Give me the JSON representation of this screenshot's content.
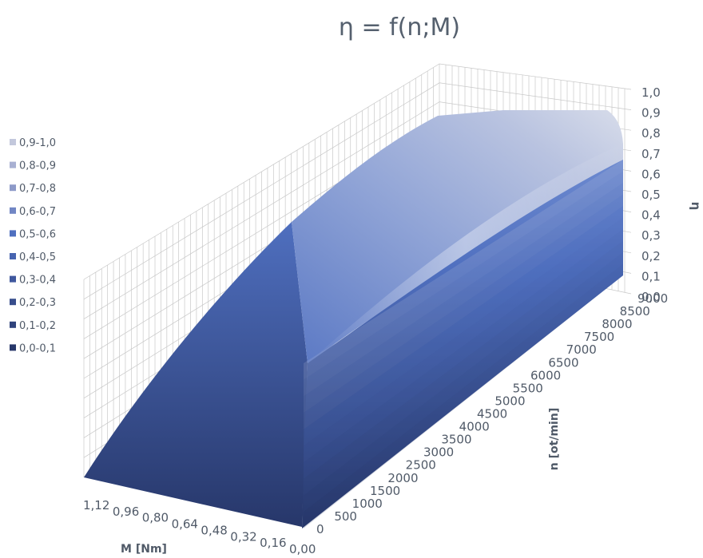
{
  "chart_data": {
    "type": "surface",
    "title": "η = f(n;M)",
    "z_label": "η",
    "y_label": "n [ot/min]",
    "x_label": "M [Nm]",
    "z_ticks": [
      "1,0",
      "0,9",
      "0,8",
      "0,7",
      "0,6",
      "0,5",
      "0,4",
      "0,3",
      "0,2",
      "0,1",
      "0,0"
    ],
    "n_ticks": [
      "0",
      "500",
      "1000",
      "1500",
      "2000",
      "2500",
      "3000",
      "3500",
      "4000",
      "4500",
      "5000",
      "5500",
      "6000",
      "6500",
      "7000",
      "7500",
      "8000",
      "8500",
      "9000"
    ],
    "m_ticks": [
      "1,12",
      "0,96",
      "0,80",
      "0,64",
      "0,48",
      "0,32",
      "0,16",
      "0,00"
    ],
    "zlim": [
      0,
      1
    ],
    "nlim": [
      0,
      9000
    ],
    "mlim": [
      0,
      1.12
    ],
    "legend": {
      "position": "left",
      "entries": [
        {
          "label": "0,9-1,0",
          "color": "#c3c8dc"
        },
        {
          "label": "0,8-0,9",
          "color": "#a8b0d2"
        },
        {
          "label": "0,7-0,8",
          "color": "#8d9ac8"
        },
        {
          "label": "0,6-0,7",
          "color": "#7186c4"
        },
        {
          "label": "0,5-0,6",
          "color": "#4f6fbf"
        },
        {
          "label": "0,4-0,5",
          "color": "#4764b0"
        },
        {
          "label": "0,3-0,4",
          "color": "#3f589e"
        },
        {
          "label": "0,2-0,3",
          "color": "#374d8c"
        },
        {
          "label": "0,1-0,2",
          "color": "#2f427b"
        },
        {
          "label": "0,0-0,1",
          "color": "#27376a"
        }
      ]
    },
    "surface_levels": [
      {
        "range": "0,0-0,1",
        "color": "#27376a"
      },
      {
        "range": "0,1-0,2",
        "color": "#2f427b"
      },
      {
        "range": "0,2-0,3",
        "color": "#374d8c"
      },
      {
        "range": "0,3-0,4",
        "color": "#3f589e"
      },
      {
        "range": "0,4-0,5",
        "color": "#4764b0"
      },
      {
        "range": "0,5-0,6",
        "color": "#4f6fbf"
      },
      {
        "range": "0,6-0,7",
        "color": "#7186c4"
      },
      {
        "range": "0,7-0,8",
        "color": "#8d9ac8"
      },
      {
        "range": "0,8-0,9",
        "color": "#a8b0d2"
      },
      {
        "range": "0,9-1,0",
        "color": "#c3c8dc"
      }
    ]
  }
}
